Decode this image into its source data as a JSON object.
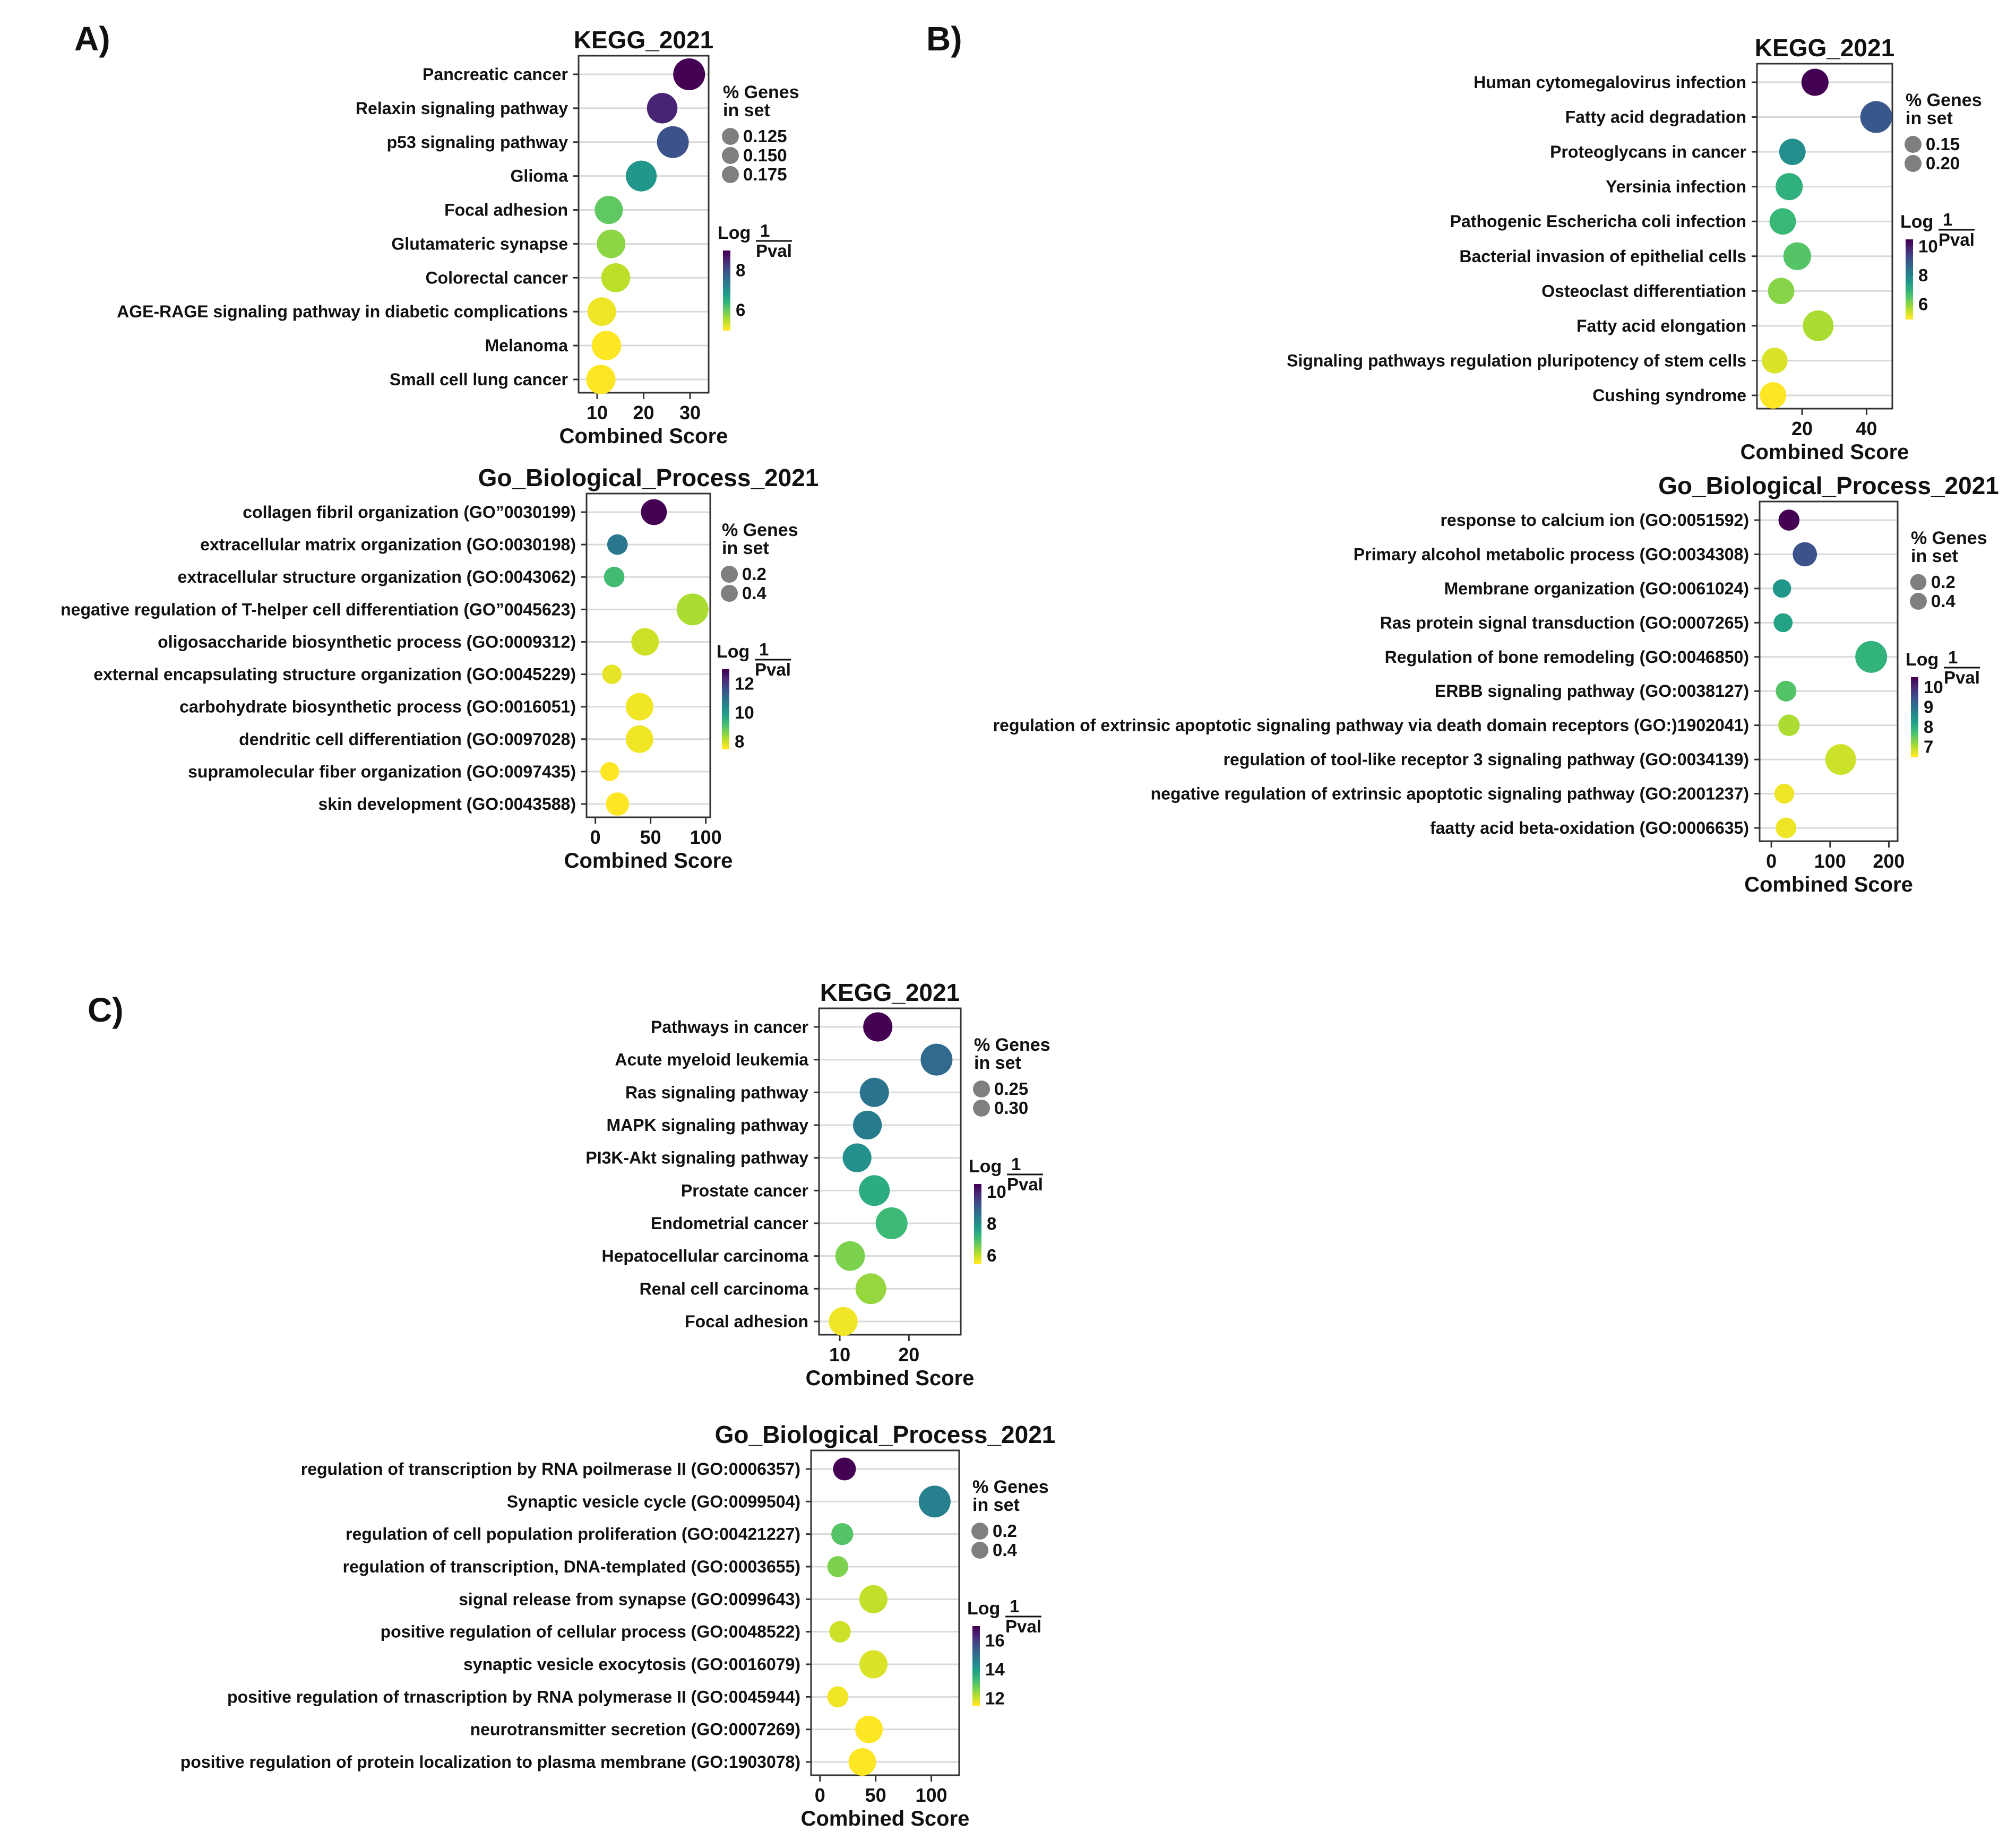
{
  "panels": [
    {
      "label": "A)",
      "charts": [
        0,
        1
      ]
    },
    {
      "label": "B)",
      "charts": [
        2,
        3
      ]
    },
    {
      "label": "C)",
      "charts": [
        4,
        5
      ]
    }
  ],
  "chart_data": [
    {
      "type": "scatter",
      "title": "KEGG_2021",
      "xlabel": "Combined Score",
      "xlim": [
        6,
        34
      ],
      "xticks": [
        10,
        20,
        30
      ],
      "size_legend": {
        "title": [
          "% Genes",
          "in set"
        ],
        "values": [
          0.125,
          0.15,
          0.175
        ],
        "labels": [
          "0.125",
          "0.150",
          "0.175"
        ]
      },
      "color_legend": {
        "title": [
          "Log",
          "1",
          "Pval"
        ],
        "range": [
          5,
          9
        ],
        "ticks": [
          8,
          6
        ]
      },
      "terms": [
        "Pancreatic cancer",
        "Relaxin signaling pathway",
        "p53 signaling pathway",
        "Glioma",
        "Focal adhesion",
        "Glutamateric synapse",
        "Colorectal cancer",
        "AGE-RAGE signaling pathway in diabetic complications",
        "Melanoma",
        "Small cell lung cancer"
      ],
      "x": [
        29.8,
        24.0,
        26.3,
        19.5,
        12.5,
        13.0,
        14.0,
        11.0,
        12.0,
        10.8
      ],
      "size": [
        0.175,
        0.155,
        0.175,
        0.16,
        0.125,
        0.13,
        0.135,
        0.13,
        0.14,
        0.14
      ],
      "logp": [
        9.0,
        8.6,
        8.0,
        6.9,
        6.0,
        5.7,
        5.4,
        5.1,
        5.0,
        5.0
      ]
    },
    {
      "type": "scatter",
      "title": "Go_Biological_Process_2021",
      "xlabel": "Combined Score",
      "xlim": [
        -8,
        104
      ],
      "xticks": [
        0,
        50,
        100
      ],
      "size_legend": {
        "title": [
          "% Genes",
          "in set"
        ],
        "values": [
          0.2,
          0.4
        ],
        "labels": [
          "0.2",
          "0.4"
        ]
      },
      "color_legend": {
        "title": [
          "Log",
          "1",
          "Pval"
        ],
        "range": [
          7.5,
          13
        ],
        "ticks": [
          12,
          10,
          8
        ]
      },
      "terms": [
        "collagen fibril organization (GO”0030199)",
        "extracellular matrix organization (GO:0030198)",
        "extracellular structure organization (GO:0043062)",
        "negative regulation of T-helper cell differentiation (GO”0045623)",
        "oligosaccharide biosynthetic process (GO:0009312)",
        "external encapsulating structure organization (GO:0045229)",
        "carbohydrate biosynthetic process (GO:0016051)",
        "dendritic cell differentiation (GO:0097028)",
        "supramolecular fiber organization (GO:0097435)",
        "skin development (GO:0043588)"
      ],
      "x": [
        53,
        20,
        17,
        88,
        45,
        15,
        40,
        40,
        13,
        20
      ],
      "size": [
        0.25,
        0.12,
        0.12,
        0.45,
        0.3,
        0.1,
        0.3,
        0.3,
        0.09,
        0.18
      ],
      "logp": [
        13.0,
        10.8,
        9.2,
        8.2,
        7.9,
        7.7,
        7.6,
        7.6,
        7.5,
        7.5
      ]
    },
    {
      "type": "scatter",
      "title": "KEGG_2021",
      "xlabel": "Combined Score",
      "xlim": [
        6,
        48
      ],
      "xticks": [
        20,
        40
      ],
      "size_legend": {
        "title": [
          "% Genes",
          "in set"
        ],
        "values": [
          0.15,
          0.2
        ],
        "labels": [
          "0.15",
          "0.20"
        ]
      },
      "color_legend": {
        "title": [
          "Log",
          "1",
          "Pval"
        ],
        "range": [
          5,
          10.5
        ],
        "ticks": [
          10,
          8,
          6
        ]
      },
      "terms": [
        "Human cytomegalovirus infection",
        "Fatty acid degradation",
        "Proteoglycans in cancer",
        "Yersinia infection",
        "Pathogenic Eschericha coli infection",
        "Bacterial invasion of epithelial cells",
        "Osteoclast differentiation",
        "Fatty acid elongation",
        "Signaling pathways regulation pluripotency of stem cells",
        "Cushing syndrome"
      ],
      "x": [
        24,
        43,
        17,
        16,
        14,
        18.5,
        13.5,
        25,
        11.5,
        11
      ],
      "size": [
        0.14,
        0.22,
        0.13,
        0.14,
        0.13,
        0.15,
        0.13,
        0.2,
        0.12,
        0.13
      ],
      "logp": [
        10.5,
        9.0,
        7.8,
        7.0,
        6.8,
        6.5,
        6.0,
        5.7,
        5.3,
        5.0
      ]
    },
    {
      "type": "scatter",
      "title": "Go_Biological_Process_2021",
      "xlabel": "Combined Score",
      "xlim": [
        -20,
        215
      ],
      "xticks": [
        0,
        100,
        200
      ],
      "size_legend": {
        "title": [
          "% Genes",
          "in set"
        ],
        "values": [
          0.2,
          0.4
        ],
        "labels": [
          "0.2",
          "0.4"
        ]
      },
      "color_legend": {
        "title": [
          "Log",
          "1",
          "Pval"
        ],
        "range": [
          6.5,
          10.5
        ],
        "ticks": [
          10,
          9,
          8,
          7
        ]
      },
      "terms": [
        "response to calcium ion (GO:0051592)",
        "Primary alcohol metabolic process (GO:0034308)",
        "Membrane organization (GO:0061024)",
        "Ras protein signal transduction (GO:0007265)",
        "Regulation of bone remodeling (GO:0046850)",
        "ERBB signaling pathway (GO:0038127)",
        "regulation of extrinsic apoptotic signaling pathway via death domain receptors (GO:)1902041)",
        "regulation of tool-like receptor 3 signaling pathway (GO:0034139)",
        "negative regulation of extrinsic apoptotic signaling pathway (GO:2001237)",
        "faatty acid beta-oxidation (GO:0006635)"
      ],
      "x": [
        30,
        57,
        18,
        20,
        170,
        25,
        30,
        118,
        22,
        25
      ],
      "size": [
        0.16,
        0.25,
        0.1,
        0.11,
        0.55,
        0.15,
        0.17,
        0.5,
        0.13,
        0.15
      ],
      "logp": [
        10.5,
        9.5,
        8.4,
        8.2,
        7.9,
        7.6,
        7.0,
        6.8,
        6.6,
        6.6
      ]
    },
    {
      "type": "scatter",
      "title": "KEGG_2021",
      "xlabel": "Combined Score",
      "xlim": [
        7,
        27.5
      ],
      "xticks": [
        10,
        20
      ],
      "size_legend": {
        "title": [
          "% Genes",
          "in set"
        ],
        "values": [
          0.25,
          0.3
        ],
        "labels": [
          "0.25",
          "0.30"
        ]
      },
      "color_legend": {
        "title": [
          "Log",
          "1",
          "Pval"
        ],
        "range": [
          5.5,
          10.5
        ],
        "ticks": [
          10,
          8,
          6
        ]
      },
      "terms": [
        "Pathways in cancer",
        "Acute myeloid leukemia",
        "Ras signaling pathway",
        "MAPK signaling pathway",
        "PI3K-Akt signaling pathway",
        "Prostate cancer",
        "Endometrial cancer",
        "Hepatocellular carcinoma",
        "Renal cell carcinoma",
        "Focal adhesion"
      ],
      "x": [
        15.5,
        24,
        15,
        14,
        12.5,
        15,
        17.5,
        11.5,
        14.5,
        10.5
      ],
      "size": [
        0.26,
        0.33,
        0.26,
        0.25,
        0.25,
        0.3,
        0.33,
        0.27,
        0.3,
        0.25
      ],
      "logp": [
        10.5,
        8.8,
        8.6,
        8.4,
        8.0,
        7.4,
        7.1,
        6.5,
        6.3,
        5.6
      ]
    },
    {
      "type": "scatter",
      "title": "Go_Biological_Process_2021",
      "xlabel": "Combined Score",
      "xlim": [
        -8,
        125
      ],
      "xticks": [
        0,
        50,
        100
      ],
      "size_legend": {
        "title": [
          "% Genes",
          "in set"
        ],
        "values": [
          0.2,
          0.4
        ],
        "labels": [
          "0.2",
          "0.4"
        ]
      },
      "color_legend": {
        "title": [
          "Log",
          "1",
          "Pval"
        ],
        "range": [
          11.5,
          17
        ],
        "ticks": [
          16,
          14,
          12
        ]
      },
      "terms": [
        "regulation of transcription by RNA poilmerase II (GO:0006357)",
        "Synaptic vesicle cycle (GO:0099504)",
        "regulation of cell population proliferation (GO:00421227)",
        "regulation of transcription, DNA-templated (GO:0003655)",
        "signal release from synapse (GO:0099643)",
        "positive regulation of cellular process (GO:0048522)",
        "synaptic vesicle exocytosis (GO:0016079)",
        "positive regulation of trnascription by RNA polymerase II (GO:0045944)",
        "neurotransmitter secretion (GO:0007269)",
        "positive regulation of protein localization to plasma membrane (GO:1903078)"
      ],
      "x": [
        22,
        103,
        20,
        16,
        48,
        18,
        48,
        16,
        44,
        38
      ],
      "size": [
        0.17,
        0.45,
        0.15,
        0.13,
        0.32,
        0.14,
        0.32,
        0.13,
        0.3,
        0.3
      ],
      "logp": [
        17.0,
        14.6,
        13.0,
        12.6,
        12.0,
        11.9,
        11.8,
        11.6,
        11.5,
        11.5
      ]
    }
  ]
}
